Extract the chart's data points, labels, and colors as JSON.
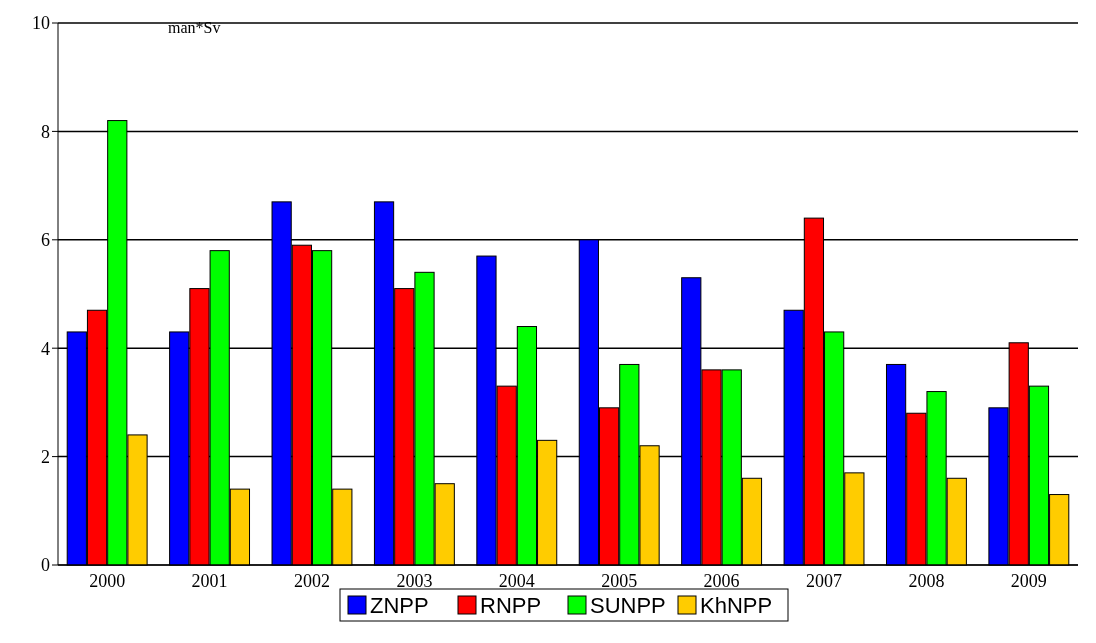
{
  "chart_data": {
    "type": "bar",
    "ylabel": "man*Sv",
    "categories": [
      "2000",
      "2001",
      "2002",
      "2003",
      "2004",
      "2005",
      "2006",
      "2007",
      "2008",
      "2009"
    ],
    "series": [
      {
        "name": "ZNPP",
        "color": "#0000ff",
        "values": [
          4.3,
          4.3,
          6.7,
          6.7,
          5.7,
          6.0,
          5.3,
          4.7,
          3.7,
          2.9
        ]
      },
      {
        "name": "RNPP",
        "color": "#ff0000",
        "values": [
          4.7,
          5.1,
          5.9,
          5.1,
          3.3,
          2.9,
          3.6,
          6.4,
          2.8,
          4.1
        ]
      },
      {
        "name": "SUNPP",
        "color": "#00ff00",
        "values": [
          8.2,
          5.8,
          5.8,
          5.4,
          4.4,
          3.7,
          3.6,
          4.3,
          3.2,
          3.3
        ]
      },
      {
        "name": "KhNPP",
        "color": "#ffcc00",
        "values": [
          2.4,
          1.4,
          1.4,
          1.5,
          2.3,
          2.2,
          1.6,
          1.7,
          1.6,
          1.3
        ]
      }
    ],
    "ylim": [
      0,
      10
    ],
    "yticks": [
      0,
      2,
      4,
      6,
      8,
      10
    ],
    "grid": "y",
    "legend": "bottom"
  }
}
